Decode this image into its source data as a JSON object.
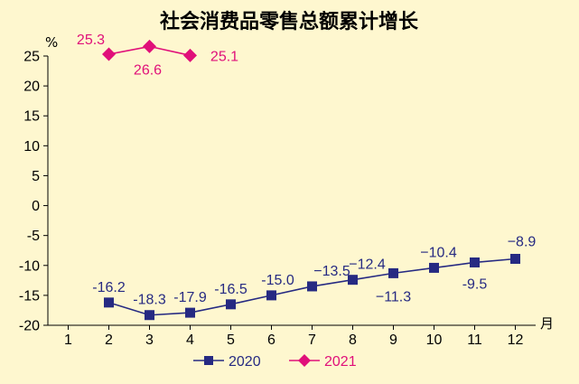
{
  "chart_data": {
    "type": "line",
    "title": "社会消费品零售总额累计增长",
    "y_unit": "%",
    "x_unit": "月",
    "ylim": [
      -20,
      25
    ],
    "y_ticks": [
      "25",
      "20",
      "15",
      "10",
      "5",
      "0",
      "-5",
      "-10",
      "-15",
      "-20"
    ],
    "categories": [
      "1",
      "2",
      "3",
      "4",
      "5",
      "6",
      "7",
      "8",
      "9",
      "10",
      "11",
      "12"
    ],
    "grid": false,
    "legend_position": "bottom",
    "series": [
      {
        "name": "2020",
        "color": "#262A82",
        "marker": "square",
        "values": [
          null,
          -16.2,
          -18.3,
          -17.9,
          -16.5,
          -15.0,
          -13.5,
          -12.4,
          -11.3,
          -10.4,
          -9.5,
          -8.9
        ],
        "labels": [
          "",
          "-16.2",
          "-18.3",
          "-17.9",
          "-16.5",
          "-15.0",
          "−13.5",
          "−12.4",
          "−11.3",
          "−10.4",
          "-9.5",
          "−8.9"
        ]
      },
      {
        "name": "2021",
        "color": "#E0107A",
        "marker": "diamond",
        "values": [
          null,
          25.3,
          26.6,
          25.1,
          null,
          null,
          null,
          null,
          null,
          null,
          null,
          null
        ],
        "labels": [
          "",
          "25.3",
          "26.6",
          "25.1",
          "",
          "",
          "",
          "",
          "",
          "",
          "",
          ""
        ]
      }
    ]
  }
}
